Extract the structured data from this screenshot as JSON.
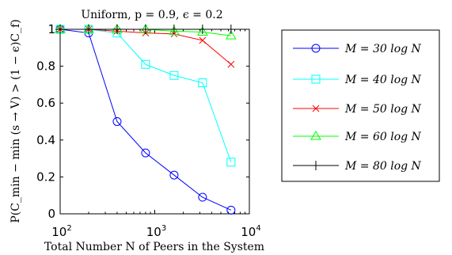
{
  "chart_data": {
    "type": "line",
    "title": "Uniform, p = 0.9, ϵ = 0.2",
    "xlabel": "Total Number N of Peers in the System",
    "ylabel": "P(C_min − min (s → V) > (1 − ϵ)C_f)",
    "xscale": "log",
    "xlim": [
      100,
      10000
    ],
    "ylim": [
      0,
      1
    ],
    "xticks": [
      {
        "base": "10",
        "exp": "2",
        "value": 100
      },
      {
        "base": "10",
        "exp": "3",
        "value": 1000
      },
      {
        "base": "10",
        "exp": "4",
        "value": 10000
      }
    ],
    "yticks": [
      "0",
      "0.2",
      "0.4",
      "0.6",
      "0.8",
      "1"
    ],
    "grid": false,
    "legend_position": "outside-right",
    "x": [
      100,
      200,
      400,
      800,
      1600,
      3200,
      6400
    ],
    "series": [
      {
        "name": "M = 30 log N",
        "color": "#0000ff",
        "marker": "circle",
        "values": [
          1.0,
          0.98,
          0.5,
          0.33,
          0.21,
          0.09,
          0.02
        ]
      },
      {
        "name": "M = 40 log N",
        "color": "#00ffff",
        "marker": "square",
        "values": [
          1.0,
          1.0,
          0.98,
          0.81,
          0.75,
          0.71,
          0.28
        ]
      },
      {
        "name": "M = 50 log N",
        "color": "#ff0000",
        "marker": "x",
        "values": [
          1.0,
          1.0,
          0.99,
          0.98,
          0.975,
          0.94,
          0.81
        ]
      },
      {
        "name": "M = 60 log N",
        "color": "#00ff00",
        "marker": "triangle",
        "values": [
          1.0,
          1.0,
          1.0,
          1.0,
          0.99,
          0.985,
          0.965
        ]
      },
      {
        "name": "M = 80 log N",
        "color": "#000000",
        "marker": "plus",
        "values": [
          1.0,
          1.0,
          1.0,
          1.0,
          1.0,
          1.0,
          1.0
        ]
      }
    ]
  }
}
